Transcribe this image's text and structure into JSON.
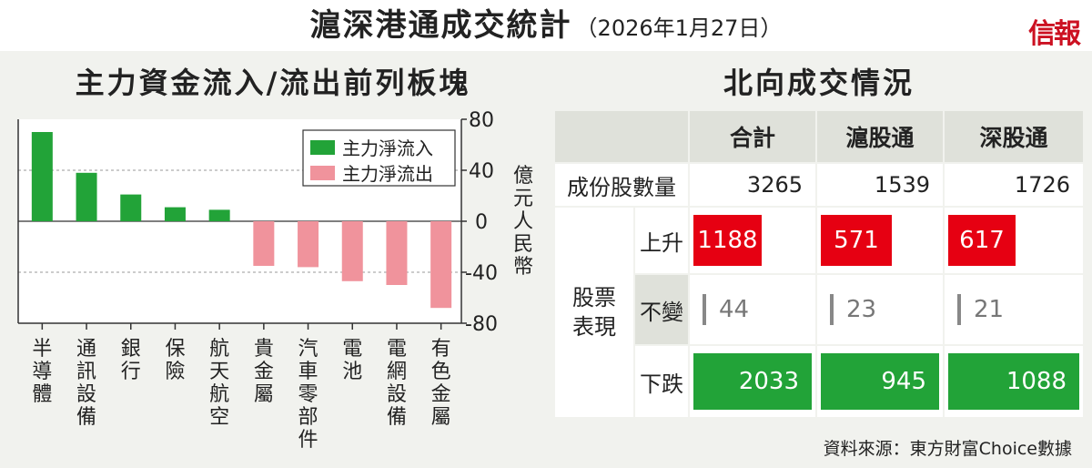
{
  "header": {
    "title": "滬深港通成交統計",
    "date": "（2026年1月27日）",
    "logo": "信報"
  },
  "left_panel": {
    "title": "主力資金流入/流出前列板塊"
  },
  "right_panel": {
    "title": "北向成交情況"
  },
  "chart_data": {
    "type": "bar",
    "categories": [
      "半導體",
      "通訊設備",
      "銀行",
      "保險",
      "航天航空",
      "貴金屬",
      "汽車零部件",
      "電池",
      "電網設備",
      "有色金屬"
    ],
    "values": [
      70,
      38,
      21,
      11,
      9,
      -35,
      -36,
      -47,
      -50,
      -68
    ],
    "series": [
      {
        "name": "主力淨流入",
        "color": "#22a338"
      },
      {
        "name": "主力淨流出",
        "color": "#f0939c"
      }
    ],
    "yticks": [
      "80",
      "40",
      "0",
      "-40",
      "-80"
    ],
    "ylim": [
      -80,
      80
    ],
    "ylabel": "億元人民幣",
    "legend": "top-right",
    "grid": "dashed at 40 and -40"
  },
  "table": {
    "columns": [
      "合計",
      "滬股通",
      "深股通"
    ],
    "constituents_label": "成份股數量",
    "constituents": [
      "3265",
      "1539",
      "1726"
    ],
    "group_label": [
      "股票",
      "表現"
    ],
    "rise_label": "上升",
    "rise": [
      "1188",
      "571",
      "617"
    ],
    "unchanged_label": "不變",
    "unchanged": [
      "44",
      "23",
      "21"
    ],
    "fall_label": "下跌",
    "fall": [
      "2033",
      "945",
      "1088"
    ],
    "rise_fill": [
      0.58,
      0.6,
      0.57
    ],
    "fall_fill": [
      1.0,
      1.0,
      1.0
    ]
  },
  "source": "資料來源：東方財富Choice數據",
  "colors": {
    "rise": "#e60012",
    "fall": "#22a338",
    "outflow": "#f0939c",
    "header_bg": "#dfe1da",
    "panel_bg": "#f1f2ee"
  }
}
